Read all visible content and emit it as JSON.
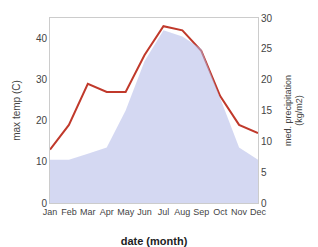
{
  "chart_data": {
    "type": "line",
    "categories": [
      "Jan",
      "Feb",
      "Mar",
      "Apr",
      "May",
      "Jun",
      "Jul",
      "Aug",
      "Sep",
      "Oct",
      "Nov",
      "Dec"
    ],
    "series": [
      {
        "type": "area",
        "color": "#b0b8e8",
        "axis": "y2",
        "values": [
          7,
          7,
          8,
          9,
          15,
          23,
          28,
          27,
          25,
          17,
          9,
          7
        ]
      },
      {
        "type": "line",
        "color": "#c0392b",
        "values": [
          13,
          19,
          29,
          27,
          27,
          36,
          43,
          42,
          37,
          26,
          19,
          17
        ]
      }
    ],
    "xlabel": "date (month)",
    "ylabel": "max temp (C)",
    "y2label": "med. precipitation\n(kg/m2)",
    "ylim": [
      0,
      45
    ],
    "yticks": [
      0,
      10,
      20,
      30,
      40
    ],
    "y2lim": [
      0,
      30
    ],
    "y2ticks": [
      0,
      5,
      10,
      15,
      20,
      25,
      30
    ],
    "grid": false
  }
}
